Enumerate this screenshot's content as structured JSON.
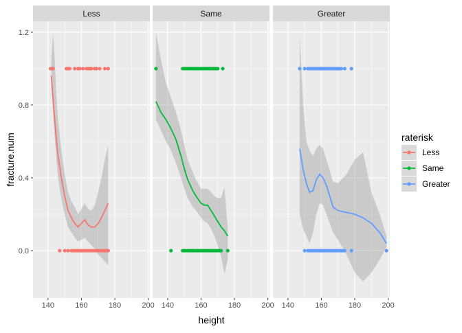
{
  "chart_data": {
    "type": "scatter",
    "facet_var": "raterisk",
    "facets": [
      "Less",
      "Same",
      "Greater"
    ],
    "xlabel": "height",
    "ylabel": "fracture.num",
    "xlim": [
      131,
      201
    ],
    "ylim": [
      -0.26,
      1.26
    ],
    "x_ticks": [
      140,
      160,
      180,
      200
    ],
    "y_ticks": [
      0.0,
      0.4,
      0.8,
      1.2
    ],
    "y_tick_labels": [
      "0.0",
      "0.4",
      "0.8",
      "1.2"
    ],
    "grid": true,
    "legend": {
      "title": "raterisk",
      "position": "right",
      "entries": [
        "Less",
        "Same",
        "Greater"
      ]
    },
    "series": [
      {
        "name": "Less",
        "color": "#F8766D",
        "points_y1": [
          141.5,
          142.5,
          143,
          151,
          152,
          153,
          156,
          158,
          159,
          161,
          163,
          164,
          165,
          166,
          168,
          169,
          171,
          174,
          176
        ],
        "points_y0": [
          147,
          150,
          152,
          154,
          155,
          156,
          157,
          158,
          159,
          160,
          161,
          162,
          163,
          164,
          165,
          166,
          167,
          168,
          169,
          170,
          171,
          172,
          173,
          174,
          175,
          176
        ],
        "smooth": {
          "x": [
            142,
            143,
            144,
            145,
            146,
            148,
            150,
            152,
            154,
            156,
            158,
            160,
            162,
            164,
            166,
            168,
            170,
            172,
            174,
            176
          ],
          "y": [
            0.96,
            0.84,
            0.72,
            0.61,
            0.52,
            0.4,
            0.3,
            0.22,
            0.18,
            0.15,
            0.13,
            0.15,
            0.17,
            0.14,
            0.13,
            0.13,
            0.15,
            0.18,
            0.22,
            0.26
          ],
          "lower": [
            0.9,
            0.76,
            0.62,
            0.5,
            0.4,
            0.28,
            0.2,
            0.13,
            0.1,
            0.07,
            0.05,
            0.06,
            0.07,
            0.05,
            0.03,
            0.01,
            -0.02,
            -0.04,
            -0.06,
            -0.08
          ],
          "upper": [
            1.05,
            1.2,
            1.05,
            0.85,
            0.72,
            0.55,
            0.42,
            0.32,
            0.27,
            0.24,
            0.2,
            0.23,
            0.26,
            0.23,
            0.22,
            0.25,
            0.32,
            0.4,
            0.5,
            0.58
          ]
        }
      },
      {
        "name": "Same",
        "color": "#00BA38",
        "points_y1": [
          133,
          149,
          150,
          151,
          152,
          153,
          154,
          155,
          156,
          157,
          158,
          159,
          160,
          161,
          162,
          163,
          164,
          165,
          166,
          167,
          168,
          169,
          170,
          173
        ],
        "points_y0": [
          142,
          149,
          150,
          151,
          152,
          153,
          154,
          155,
          156,
          157,
          158,
          159,
          160,
          161,
          162,
          163,
          164,
          165,
          166,
          167,
          168,
          169,
          170,
          171,
          172,
          176
        ],
        "smooth": {
          "x": [
            133,
            136,
            139,
            142,
            145,
            148,
            150,
            152,
            155,
            157,
            160,
            162,
            164,
            166,
            168,
            170,
            172,
            174,
            176
          ],
          "y": [
            0.82,
            0.76,
            0.72,
            0.67,
            0.61,
            0.52,
            0.45,
            0.39,
            0.33,
            0.3,
            0.26,
            0.25,
            0.25,
            0.22,
            0.19,
            0.16,
            0.13,
            0.11,
            0.08
          ],
          "lower": [
            0.72,
            0.66,
            0.6,
            0.55,
            0.48,
            0.4,
            0.34,
            0.29,
            0.24,
            0.22,
            0.18,
            0.16,
            0.15,
            0.12,
            0.08,
            0.03,
            -0.03,
            -0.13,
            -0.05
          ],
          "upper": [
            1.2,
            1.05,
            0.92,
            0.84,
            0.76,
            0.66,
            0.58,
            0.5,
            0.43,
            0.39,
            0.34,
            0.34,
            0.34,
            0.32,
            0.3,
            0.29,
            0.29,
            0.35,
            0.12
          ]
        }
      },
      {
        "name": "Greater",
        "color": "#619CFF",
        "points_y1": [
          147,
          150,
          152,
          153,
          154,
          155,
          156,
          157,
          158,
          159,
          160,
          161,
          162,
          163,
          164,
          165,
          166,
          167,
          168,
          169,
          170,
          171,
          172,
          174,
          178
        ],
        "points_y0": [
          150,
          152,
          153,
          154,
          155,
          156,
          157,
          158,
          159,
          160,
          161,
          162,
          163,
          164,
          165,
          166,
          167,
          168,
          169,
          170,
          171,
          172,
          173,
          174,
          178,
          199
        ],
        "smooth": {
          "x": [
            147,
            149,
            151,
            153,
            155,
            157,
            159,
            161,
            163,
            165,
            167,
            170,
            175,
            180,
            185,
            190,
            195,
            199
          ],
          "y": [
            0.56,
            0.45,
            0.37,
            0.32,
            0.33,
            0.39,
            0.42,
            0.4,
            0.36,
            0.3,
            0.24,
            0.22,
            0.21,
            0.2,
            0.18,
            0.15,
            0.1,
            0.04
          ],
          "lower": [
            0.2,
            0.12,
            0.08,
            0.04,
            0.1,
            0.2,
            0.26,
            0.25,
            0.2,
            0.15,
            0.1,
            0.06,
            -0.02,
            -0.12,
            -0.17,
            -0.12,
            -0.05,
            0.02
          ],
          "upper": [
            1.18,
            0.82,
            0.6,
            0.55,
            0.52,
            0.56,
            0.58,
            0.56,
            0.5,
            0.44,
            0.38,
            0.37,
            0.42,
            0.5,
            0.54,
            0.32,
            0.2,
            0.08
          ]
        }
      }
    ]
  },
  "colors": {
    "panel_bg": "#EBEBEB",
    "strip_bg": "#D9D9D9",
    "grid_major": "#FFFFFF",
    "ribbon": "#999999"
  }
}
